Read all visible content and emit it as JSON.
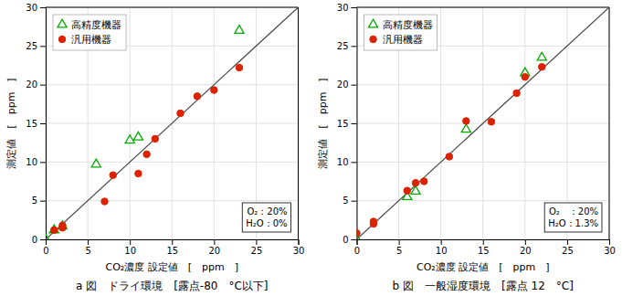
{
  "chart_data": [
    {
      "type": "scatter",
      "title": "a 図　ドライ環境　[露点-80　°C以下]",
      "xlabel": "CO₂濃度 設定値　[　ppm　]",
      "ylabel": "測定値　[　ppm　]",
      "annotation": "O₂：20%\nH₂O：0%",
      "series": [
        {
          "type": "line",
          "color": "#444444",
          "x": [
            0,
            30
          ],
          "values": [
            0,
            30
          ]
        },
        {
          "name": "高精度機器",
          "color": "#00aa00",
          "marker": "triangle-open",
          "x": [
            0,
            1,
            2,
            6,
            10,
            11,
            23
          ],
          "values": [
            0,
            1.2,
            1.7,
            9.7,
            12.8,
            13.2,
            27
          ]
        },
        {
          "name": "汎用機器",
          "color": "#dd2200",
          "marker": "circle",
          "x": [
            1,
            2,
            2,
            7,
            8,
            11,
            12,
            13,
            16,
            18,
            20,
            23
          ],
          "values": [
            1.2,
            1.5,
            1.8,
            4.9,
            8.3,
            8.5,
            11.0,
            13.0,
            16.3,
            18.5,
            19.3,
            22.2
          ]
        }
      ],
      "xlim": [
        0,
        30
      ],
      "ylim": [
        0,
        30
      ],
      "xticks": [
        0,
        5,
        10,
        15,
        20,
        25,
        30
      ],
      "yticks": [
        0,
        5,
        10,
        15,
        20,
        25,
        30
      ],
      "grid": true,
      "legend": "upper left"
    },
    {
      "type": "scatter",
      "title": "b 図　一般湿度環境　[露点 12　°C]",
      "xlabel": "CO₂濃度 設定値　[　ppm　]",
      "ylabel": "測定値　[　ppm　]",
      "annotation": "O₂　：20%\nH₂O：1.3%",
      "series": [
        {
          "type": "line",
          "color": "#444444",
          "x": [
            0,
            30
          ],
          "values": [
            0,
            30
          ]
        },
        {
          "name": "高精度機器",
          "color": "#00aa00",
          "marker": "triangle-open",
          "x": [
            0,
            6,
            7,
            13,
            20,
            22
          ],
          "values": [
            0,
            5.5,
            6.2,
            14.2,
            21.5,
            23.5
          ]
        },
        {
          "name": "汎用機器",
          "color": "#dd2200",
          "marker": "circle",
          "x": [
            0,
            2,
            2,
            6,
            7,
            8,
            11,
            13,
            16,
            19,
            20,
            22
          ],
          "values": [
            0.8,
            2.0,
            2.3,
            6.3,
            7.3,
            7.5,
            10.7,
            15.3,
            15.2,
            18.9,
            21.0,
            22.3
          ]
        }
      ],
      "xlim": [
        0,
        30
      ],
      "ylim": [
        0,
        30
      ],
      "xticks": [
        0,
        5,
        10,
        15,
        20,
        25,
        30
      ],
      "yticks": [
        0,
        5,
        10,
        15,
        20,
        25,
        30
      ],
      "grid": true,
      "legend": "upper left"
    }
  ]
}
